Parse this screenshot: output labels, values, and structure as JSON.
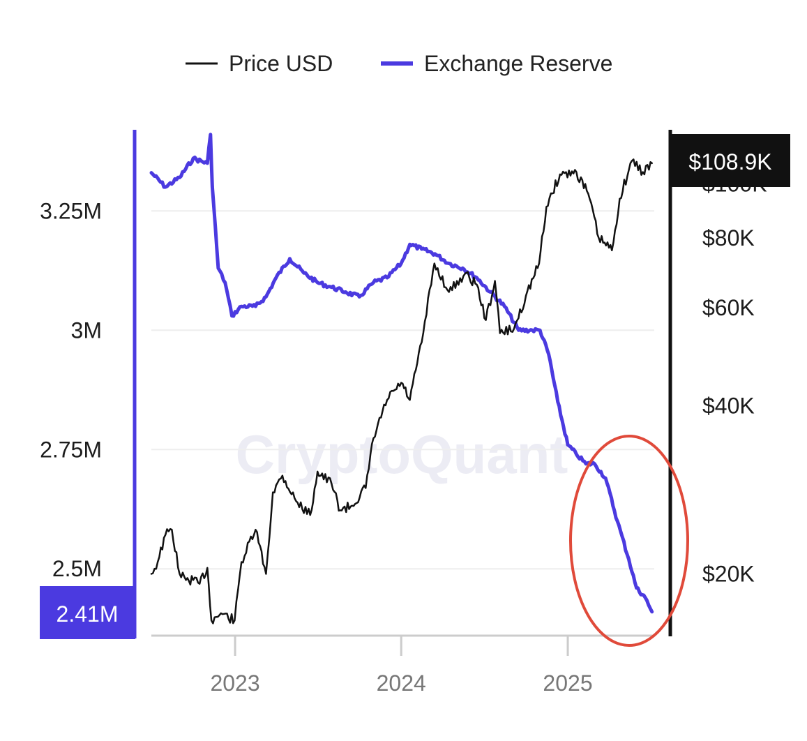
{
  "watermark": "CryptoQuant",
  "chart_data": {
    "type": "line",
    "legend": [
      {
        "name": "Price USD",
        "color": "#111111"
      },
      {
        "name": "Exchange Reserve",
        "color": "#4b3ae0"
      }
    ],
    "legend_position": "top-center",
    "grid": true,
    "x_axis": {
      "ticks": [
        "2023",
        "2024",
        "2025"
      ],
      "range": [
        "2022-07-01",
        "2025-07-10"
      ]
    },
    "y_left": {
      "ticks": [
        "2.5M",
        "2.75M",
        "3M",
        "3.25M"
      ],
      "tick_values": [
        2500000,
        2750000,
        3000000,
        3250000
      ],
      "range": [
        2360000,
        3420000
      ],
      "current_label": "2.41M",
      "current_value": 2410000
    },
    "y_right": {
      "ticks": [
        "$20K",
        "$40K",
        "$60K",
        "$80K",
        "$100K"
      ],
      "tick_values": [
        20000,
        40000,
        60000,
        80000,
        100000
      ],
      "scale": "log",
      "range": [
        15500,
        125000
      ],
      "current_label": "$108.9K",
      "current_value": 108900
    },
    "series": [
      {
        "name": "Exchange Reserve",
        "axis": "left",
        "points": [
          [
            "2022-07-01",
            3330000
          ],
          [
            "2022-08-01",
            3300000
          ],
          [
            "2022-09-01",
            3320000
          ],
          [
            "2022-10-01",
            3360000
          ],
          [
            "2022-11-01",
            3350000
          ],
          [
            "2022-11-08",
            3410000
          ],
          [
            "2022-11-12",
            3300000
          ],
          [
            "2022-11-25",
            3130000
          ],
          [
            "2022-12-10",
            3100000
          ],
          [
            "2022-12-25",
            3030000
          ],
          [
            "2023-01-15",
            3050000
          ],
          [
            "2023-02-15",
            3050000
          ],
          [
            "2023-03-10",
            3070000
          ],
          [
            "2023-04-01",
            3110000
          ],
          [
            "2023-05-01",
            3150000
          ],
          [
            "2023-06-01",
            3120000
          ],
          [
            "2023-07-01",
            3100000
          ],
          [
            "2023-08-01",
            3090000
          ],
          [
            "2023-09-01",
            3080000
          ],
          [
            "2023-10-01",
            3070000
          ],
          [
            "2023-11-01",
            3100000
          ],
          [
            "2023-12-01",
            3110000
          ],
          [
            "2024-01-01",
            3140000
          ],
          [
            "2024-01-20",
            3180000
          ],
          [
            "2024-02-15",
            3170000
          ],
          [
            "2024-03-15",
            3160000
          ],
          [
            "2024-04-15",
            3140000
          ],
          [
            "2024-05-15",
            3130000
          ],
          [
            "2024-06-15",
            3110000
          ],
          [
            "2024-07-15",
            3080000
          ],
          [
            "2024-08-15",
            3050000
          ],
          [
            "2024-09-15",
            3000000
          ],
          [
            "2024-10-15",
            3000000
          ],
          [
            "2024-11-01",
            3000000
          ],
          [
            "2024-11-20",
            2950000
          ],
          [
            "2024-12-10",
            2850000
          ],
          [
            "2025-01-01",
            2760000
          ],
          [
            "2025-01-20",
            2740000
          ],
          [
            "2025-02-10",
            2720000
          ],
          [
            "2025-03-01",
            2720000
          ],
          [
            "2025-03-25",
            2690000
          ],
          [
            "2025-04-20",
            2600000
          ],
          [
            "2025-05-15",
            2520000
          ],
          [
            "2025-06-01",
            2460000
          ],
          [
            "2025-06-20",
            2440000
          ],
          [
            "2025-07-05",
            2410000
          ]
        ]
      },
      {
        "name": "Price USD",
        "axis": "right",
        "points": [
          [
            "2022-07-01",
            20000
          ],
          [
            "2022-07-15",
            21000
          ],
          [
            "2022-08-01",
            23500
          ],
          [
            "2022-08-15",
            24000
          ],
          [
            "2022-09-01",
            20000
          ],
          [
            "2022-09-15",
            19500
          ],
          [
            "2022-10-01",
            19500
          ],
          [
            "2022-10-15",
            19200
          ],
          [
            "2022-11-01",
            20500
          ],
          [
            "2022-11-10",
            16500
          ],
          [
            "2022-12-01",
            17000
          ],
          [
            "2022-12-31",
            16500
          ],
          [
            "2023-01-15",
            21000
          ],
          [
            "2023-02-15",
            24000
          ],
          [
            "2023-03-10",
            20000
          ],
          [
            "2023-03-25",
            28000
          ],
          [
            "2023-04-15",
            30000
          ],
          [
            "2023-05-15",
            27000
          ],
          [
            "2023-06-15",
            25500
          ],
          [
            "2023-07-01",
            30500
          ],
          [
            "2023-08-01",
            29000
          ],
          [
            "2023-08-20",
            26000
          ],
          [
            "2023-09-15",
            26500
          ],
          [
            "2023-10-15",
            28500
          ],
          [
            "2023-11-01",
            35000
          ],
          [
            "2023-12-01",
            41000
          ],
          [
            "2024-01-01",
            44000
          ],
          [
            "2024-01-20",
            41000
          ],
          [
            "2024-02-15",
            52000
          ],
          [
            "2024-03-14",
            72000
          ],
          [
            "2024-04-15",
            64000
          ],
          [
            "2024-05-20",
            69000
          ],
          [
            "2024-06-15",
            66000
          ],
          [
            "2024-07-05",
            57000
          ],
          [
            "2024-07-25",
            67000
          ],
          [
            "2024-08-05",
            54000
          ],
          [
            "2024-09-05",
            55000
          ],
          [
            "2024-10-01",
            63000
          ],
          [
            "2024-10-30",
            72000
          ],
          [
            "2024-11-15",
            91000
          ],
          [
            "2024-12-15",
            104000
          ],
          [
            "2025-01-20",
            105000
          ],
          [
            "2025-02-15",
            96000
          ],
          [
            "2025-03-10",
            80000
          ],
          [
            "2025-04-08",
            76000
          ],
          [
            "2025-04-25",
            94000
          ],
          [
            "2025-05-22",
            110000
          ],
          [
            "2025-06-15",
            105000
          ],
          [
            "2025-07-05",
            108900
          ]
        ]
      }
    ]
  }
}
